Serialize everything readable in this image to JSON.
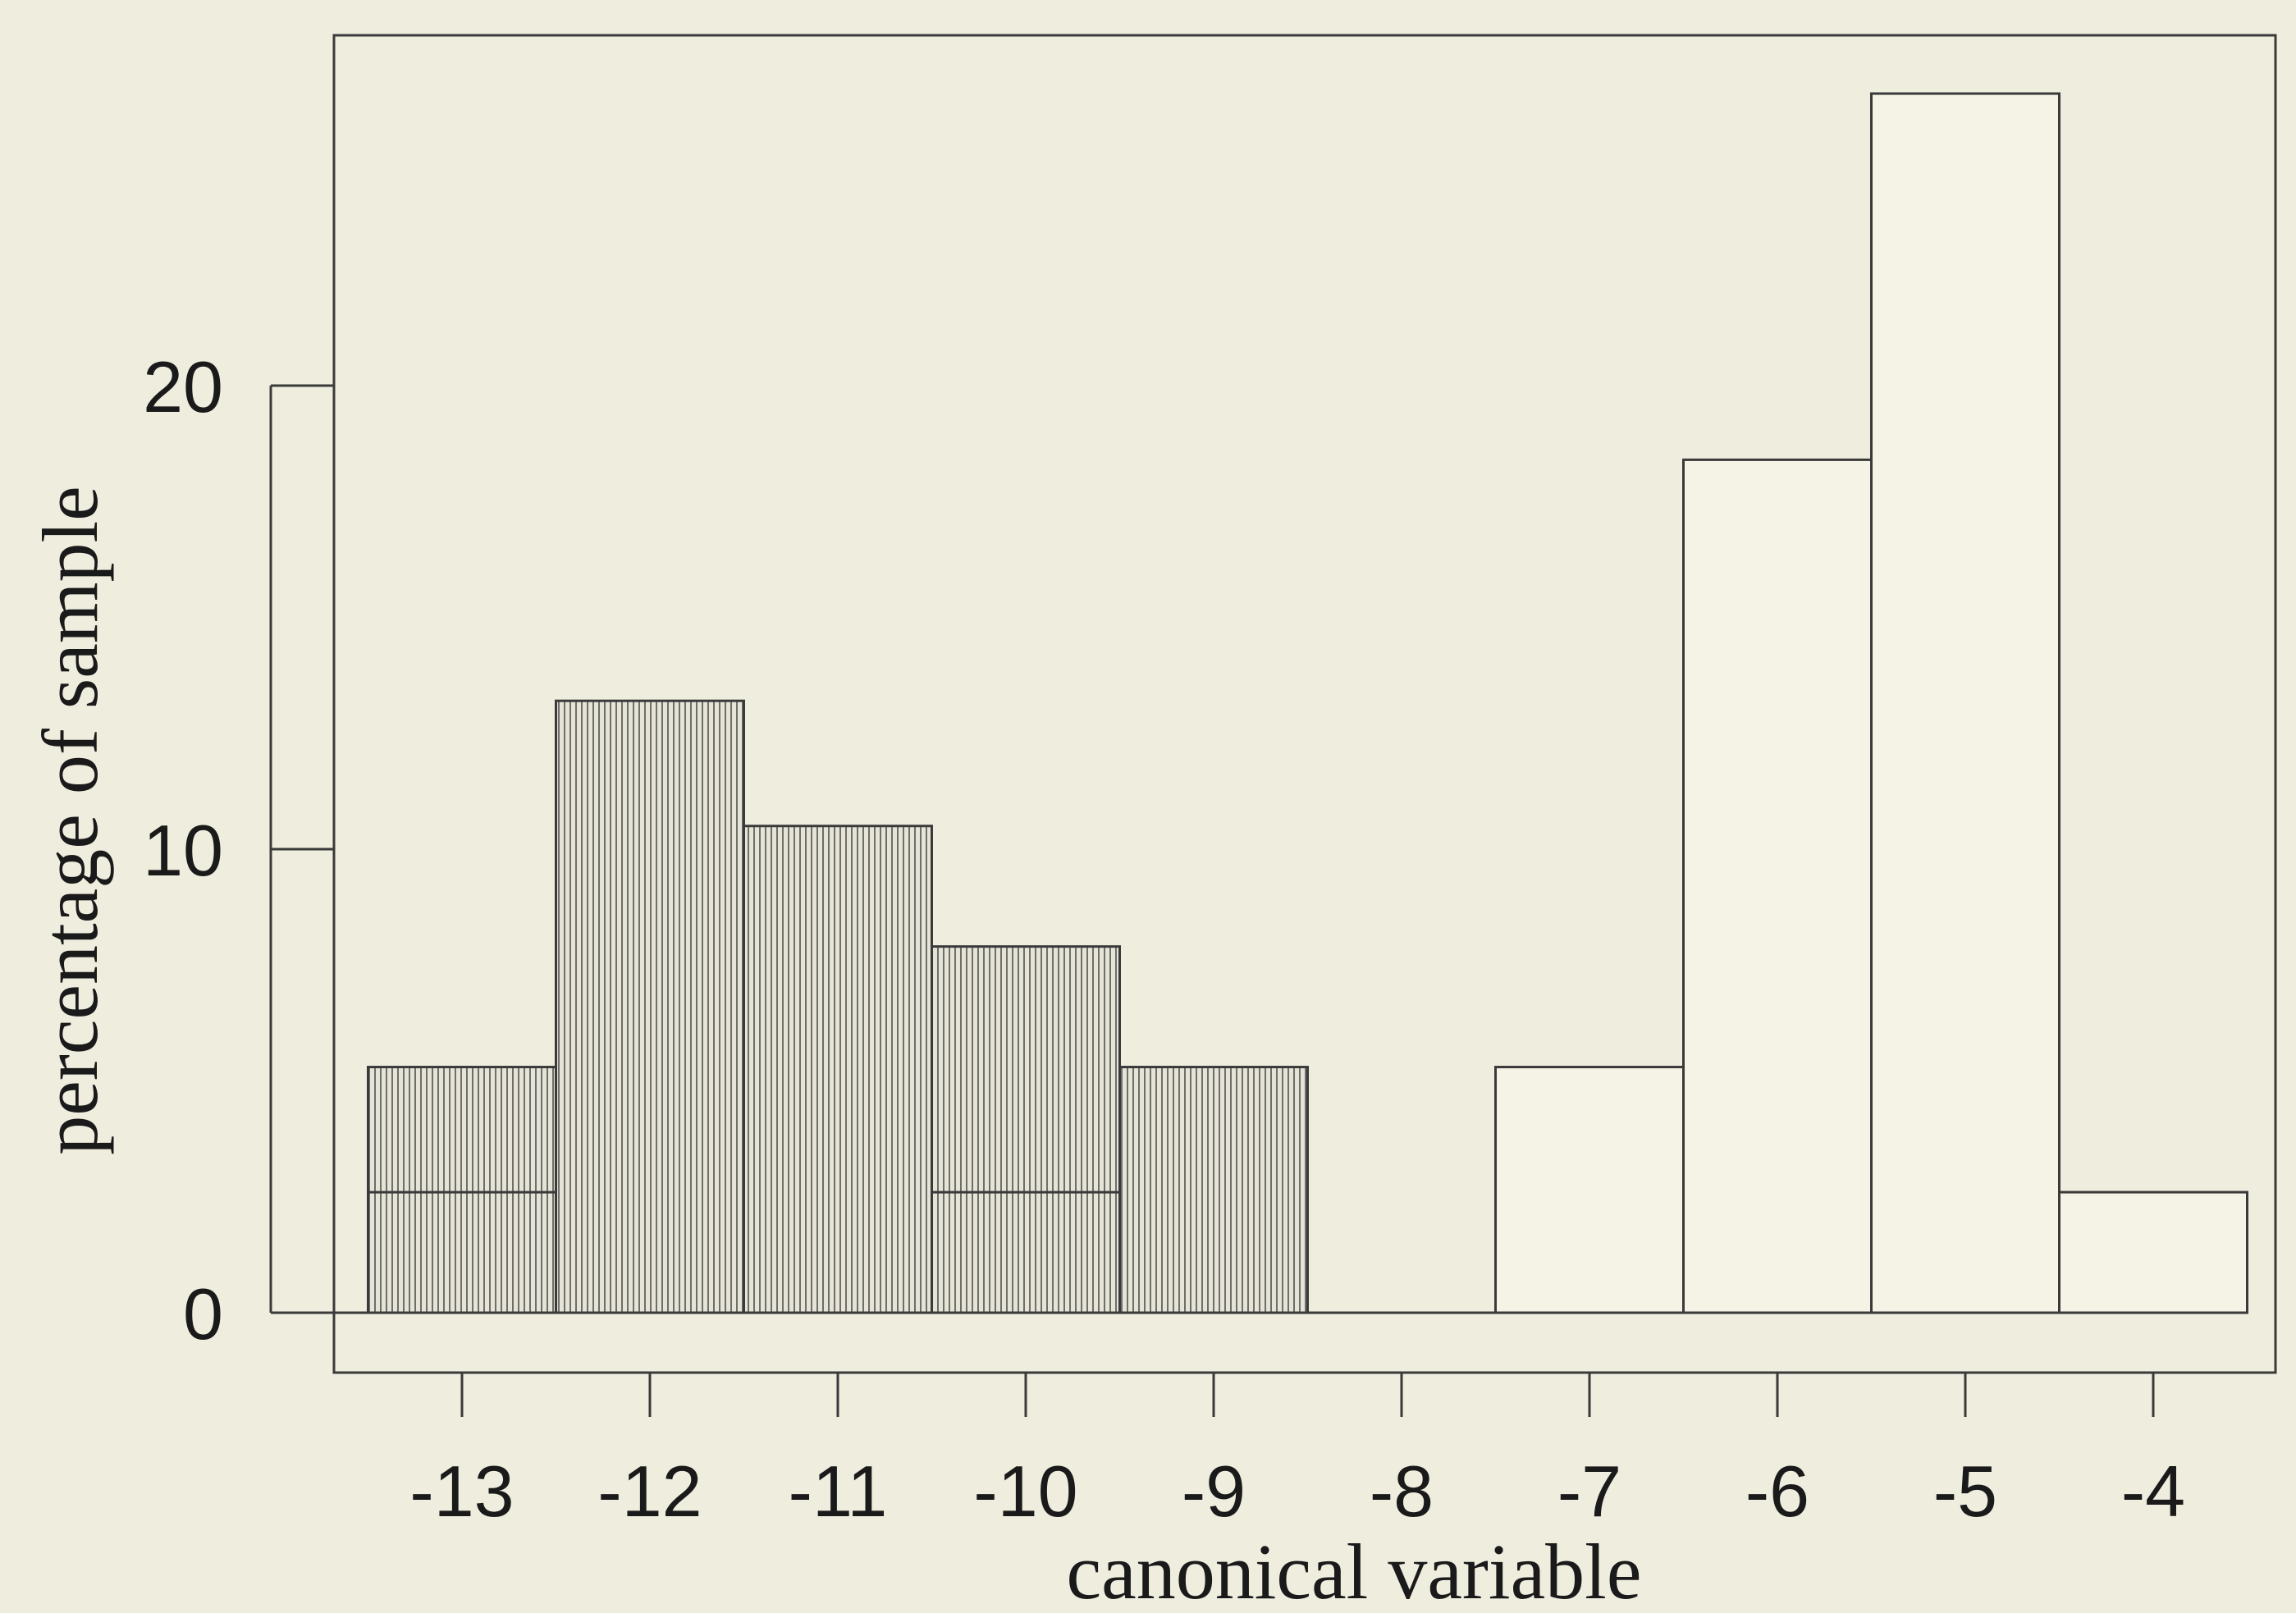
{
  "chart_data": {
    "type": "bar",
    "title": "",
    "xlabel": "canonical variable",
    "ylabel": "percentage of sample",
    "x": [
      -13,
      -12,
      -11,
      -10,
      -9,
      -8,
      -7,
      -6,
      -5,
      -4
    ],
    "xticks": [
      "-13",
      "-12",
      "-11",
      "-10",
      "-9",
      "-8",
      "-7",
      "-6",
      "-5",
      "-4"
    ],
    "yticks": [
      "0",
      "10",
      "20"
    ],
    "ylim": [
      0,
      28.5
    ],
    "xlim": [
      -13.68,
      -3.68
    ],
    "grid": false,
    "legend": "none",
    "series": [
      {
        "pattern": "vertical-hatch",
        "x": [
          -13,
          -12,
          -11,
          -10,
          -9
        ],
        "values": [
          5.3,
          13.2,
          10.5,
          7.9,
          5.3
        ],
        "inner_lines": [
          2.6,
          null,
          null,
          2.6,
          null
        ]
      },
      {
        "pattern": "none",
        "x": [
          -7,
          -6,
          -5,
          -4
        ],
        "values": [
          5.3,
          18.4,
          26.3,
          2.6
        ],
        "inner_lines": [
          null,
          null,
          null,
          null
        ]
      }
    ]
  }
}
